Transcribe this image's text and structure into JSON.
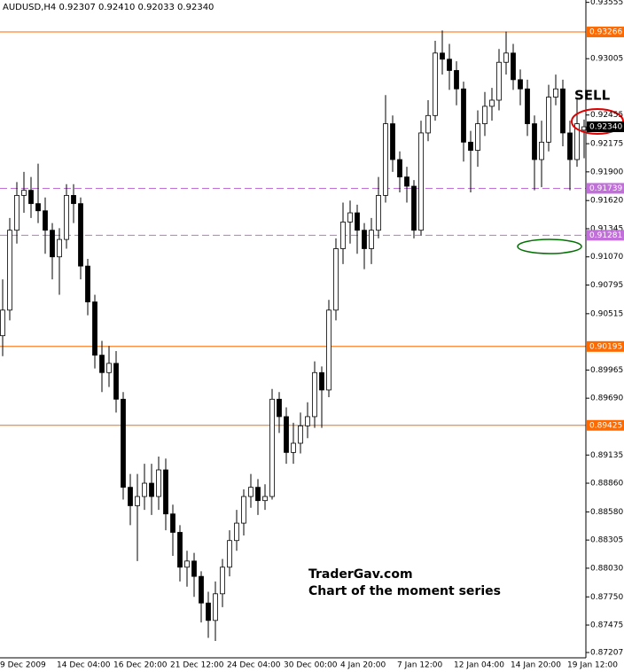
{
  "chart_data": {
    "type": "candlestick",
    "title": "AUDUSD,H4  0.92307 0.92410 0.92033 0.92340",
    "categories": [
      "9 Dec 2009",
      null,
      null,
      null,
      null,
      null,
      null,
      null,
      "14 Dec 04:00",
      null,
      null,
      null,
      null,
      null,
      null,
      null,
      "16 Dec 20:00",
      null,
      null,
      null,
      null,
      null,
      null,
      null,
      "21 Dec 12:00",
      null,
      null,
      null,
      null,
      null,
      null,
      null,
      "24 Dec 04:00",
      null,
      null,
      null,
      null,
      null,
      null,
      null,
      "30 Dec 00:00",
      null,
      null,
      null,
      null,
      null,
      null,
      null,
      "4 Jan 20:00",
      null,
      null,
      null,
      null,
      null,
      null,
      null,
      "7 Jan 12:00",
      null,
      null,
      null,
      null,
      null,
      null,
      null,
      "12 Jan 04:00",
      null,
      null,
      null,
      null,
      null,
      null,
      null,
      "14 Jan 20:00",
      null,
      null,
      null,
      null,
      null,
      null,
      null,
      "19 Jan 12:00",
      null,
      null
    ],
    "open": [
      0.903,
      0.9055,
      0.9133,
      0.9167,
      0.9172,
      0.9159,
      0.9152,
      0.9133,
      0.9107,
      0.9124,
      0.9167,
      0.9159,
      0.9098,
      0.9063,
      0.9011,
      0.8994,
      0.9003,
      0.8968,
      0.8882,
      0.8864,
      0.8873,
      0.8886,
      0.8873,
      0.8899,
      0.8856,
      0.8838,
      0.8804,
      0.881,
      0.8795,
      0.8769,
      0.8752,
      0.8778,
      0.8804,
      0.883,
      0.8847,
      0.8873,
      0.8882,
      0.8869,
      0.8873,
      0.8968,
      0.8951,
      0.8916,
      0.8925,
      0.8942,
      0.8951,
      0.8994,
      0.8977,
      0.9055,
      0.9115,
      0.9141,
      0.915,
      0.9133,
      0.9115,
      0.9133,
      0.9167,
      0.9237,
      0.9202,
      0.9185,
      0.9176,
      0.9133,
      0.9228,
      0.9245,
      0.9306,
      0.93,
      0.9289,
      0.9271,
      0.9219,
      0.9211,
      0.9237,
      0.9254,
      0.926,
      0.9297,
      0.9306,
      0.928,
      0.9271,
      0.9237,
      0.9202,
      0.9219,
      0.9263,
      0.9271,
      0.9228,
      0.9202,
      0.92307
    ],
    "high": [
      0.9085,
      0.9145,
      0.918,
      0.919,
      0.9185,
      0.9198,
      0.9165,
      0.914,
      0.9135,
      0.9178,
      0.9178,
      0.9165,
      0.9105,
      0.907,
      0.9025,
      0.902,
      0.9015,
      0.8975,
      0.8895,
      0.8895,
      0.8905,
      0.8905,
      0.8912,
      0.891,
      0.8865,
      0.8845,
      0.882,
      0.8818,
      0.88,
      0.878,
      0.879,
      0.8812,
      0.884,
      0.886,
      0.888,
      0.8895,
      0.889,
      0.8885,
      0.8978,
      0.8975,
      0.896,
      0.8945,
      0.8955,
      0.8965,
      0.9005,
      0.9,
      0.9065,
      0.9125,
      0.916,
      0.9162,
      0.9158,
      0.914,
      0.9145,
      0.9185,
      0.9265,
      0.9245,
      0.921,
      0.9195,
      0.9182,
      0.924,
      0.926,
      0.9318,
      0.9328,
      0.9315,
      0.9298,
      0.9278,
      0.923,
      0.925,
      0.9268,
      0.9272,
      0.931,
      0.9327,
      0.9315,
      0.929,
      0.928,
      0.9245,
      0.924,
      0.9275,
      0.9285,
      0.928,
      0.924,
      0.9262,
      0.9241
    ],
    "low": [
      0.901,
      0.9045,
      0.912,
      0.915,
      0.9145,
      0.914,
      0.911,
      0.9085,
      0.907,
      0.9115,
      0.914,
      0.9085,
      0.905,
      0.8998,
      0.8975,
      0.898,
      0.8955,
      0.887,
      0.8845,
      0.881,
      0.886,
      0.8855,
      0.886,
      0.884,
      0.8815,
      0.879,
      0.8785,
      0.8775,
      0.875,
      0.8735,
      0.8732,
      0.8765,
      0.8795,
      0.882,
      0.8835,
      0.8862,
      0.8855,
      0.886,
      0.887,
      0.8935,
      0.8905,
      0.8905,
      0.8915,
      0.893,
      0.894,
      0.894,
      0.897,
      0.9045,
      0.91,
      0.912,
      0.911,
      0.9095,
      0.91,
      0.9125,
      0.916,
      0.919,
      0.917,
      0.916,
      0.9125,
      0.9128,
      0.922,
      0.924,
      0.9285,
      0.927,
      0.9255,
      0.92,
      0.917,
      0.9195,
      0.9225,
      0.924,
      0.925,
      0.9285,
      0.927,
      0.9255,
      0.9225,
      0.9172,
      0.9175,
      0.921,
      0.9255,
      0.9215,
      0.9172,
      0.9195,
      0.92033
    ],
    "close": [
      0.9055,
      0.9133,
      0.9167,
      0.9172,
      0.9159,
      0.9152,
      0.9133,
      0.9107,
      0.9124,
      0.9167,
      0.9159,
      0.9098,
      0.9063,
      0.9011,
      0.8994,
      0.9003,
      0.8968,
      0.8882,
      0.8864,
      0.8873,
      0.8886,
      0.8873,
      0.8899,
      0.8856,
      0.8838,
      0.8804,
      0.881,
      0.8795,
      0.8769,
      0.8752,
      0.8778,
      0.8804,
      0.883,
      0.8847,
      0.8873,
      0.8882,
      0.8869,
      0.8873,
      0.8968,
      0.8951,
      0.8916,
      0.8925,
      0.8942,
      0.8951,
      0.8994,
      0.8977,
      0.9055,
      0.9115,
      0.9141,
      0.915,
      0.9133,
      0.9115,
      0.9133,
      0.9167,
      0.9237,
      0.9202,
      0.9185,
      0.9176,
      0.9133,
      0.9228,
      0.9245,
      0.9306,
      0.93,
      0.9289,
      0.9271,
      0.9219,
      0.9211,
      0.9237,
      0.9254,
      0.926,
      0.9297,
      0.9306,
      0.928,
      0.9271,
      0.9237,
      0.9202,
      0.9219,
      0.9263,
      0.9271,
      0.9228,
      0.9202,
      0.9237,
      0.9234
    ],
    "up_color": "#ffffff",
    "down_color": "#000000",
    "outline_color": "#000000",
    "ylim": [
      0.87155,
      0.93578
    ],
    "yticks": [
      0.93555,
      0.93005,
      0.92455,
      0.92175,
      {
        "value": 0.919,
        "label": "0.91900"
      },
      {
        "value": 0.9162,
        "label": "0.91620"
      },
      0.91345,
      {
        "value": 0.9107,
        "label": "0.91070"
      },
      0.90795,
      0.90515,
      0.89965,
      {
        "value": 0.8969,
        "label": "0.89690"
      },
      0.89135,
      {
        "value": 0.8886,
        "label": "0.88860"
      },
      {
        "value": 0.8858,
        "label": "0.88580"
      },
      0.88305,
      {
        "value": 0.8803,
        "label": "0.88030"
      },
      {
        "value": 0.8775,
        "label": "0.87750"
      },
      0.87475,
      0.87207
    ],
    "hlines": [
      {
        "value": 0.93266,
        "color": "#ff6a00",
        "dashed": false
      },
      {
        "value": 0.91739,
        "color": "#c070d8",
        "dashed": true
      },
      {
        "value": 0.91281,
        "color": "#c070d8",
        "dashed": true
      },
      {
        "value": 0.90195,
        "color": "#ff6a00",
        "dashed": false
      },
      {
        "value": 0.89425,
        "color": "#ff6a00",
        "dashed": false
      }
    ],
    "last_price": {
      "value": 0.9234,
      "label": "0.92340"
    },
    "annotation": "SELL",
    "watermark": [
      "TraderGav.com",
      "Chart of the moment series"
    ]
  }
}
